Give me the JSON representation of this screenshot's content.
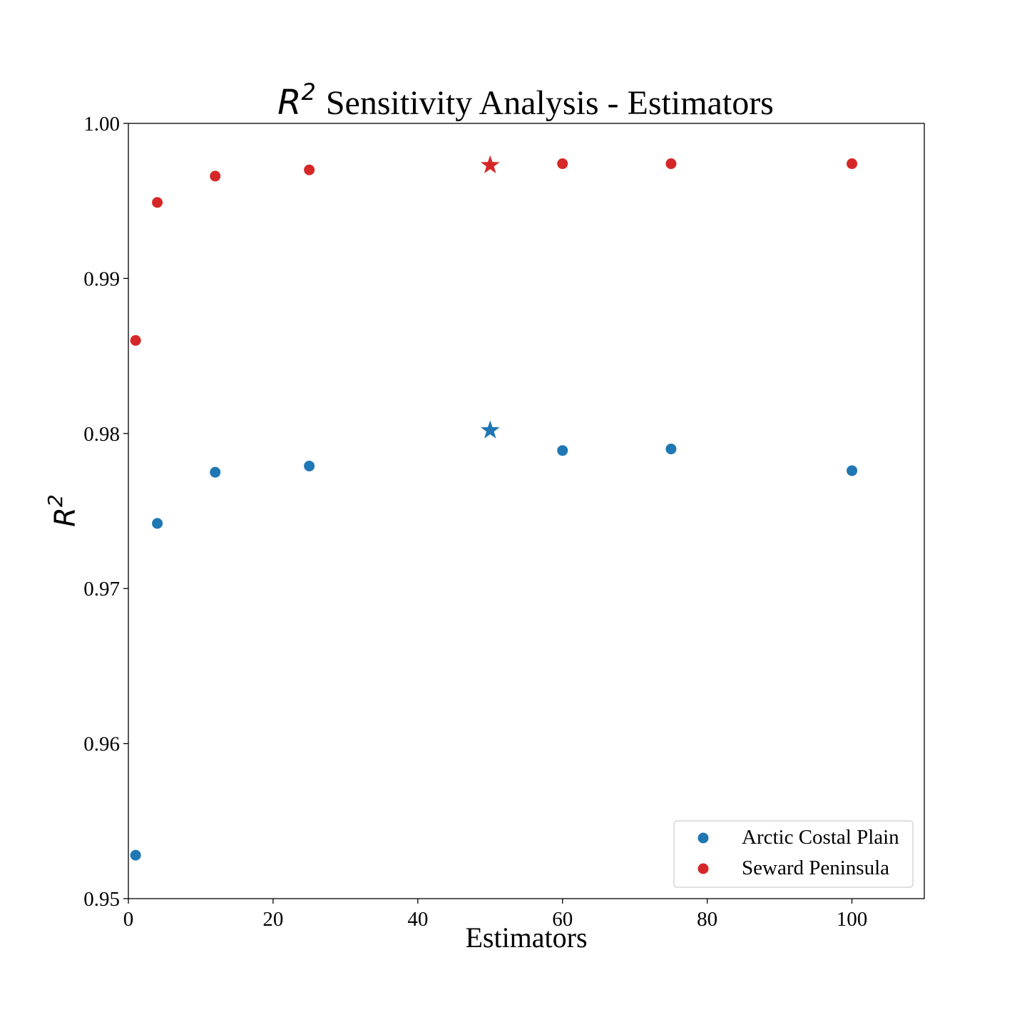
{
  "chart_data": {
    "type": "scatter",
    "title": {
      "math": "R",
      "superscript": "2",
      "text": "Sensitivity Analysis - Estimators"
    },
    "xlabel": "Estimators",
    "ylabel": {
      "math": "R",
      "superscript": "2"
    },
    "xlim": [
      0,
      110
    ],
    "ylim": [
      0.95,
      1.0
    ],
    "x_ticks": [
      0,
      20,
      40,
      60,
      80,
      100
    ],
    "x_tick_labels": [
      "0",
      "20",
      "40",
      "60",
      "80",
      "100"
    ],
    "y_ticks": [
      0.95,
      0.96,
      0.97,
      0.98,
      0.99,
      1.0
    ],
    "y_tick_labels": [
      "0.95",
      "0.96",
      "0.97",
      "0.98",
      "0.99",
      "1.00"
    ],
    "grid": false,
    "legend_position": "lower-right",
    "series": [
      {
        "name": "Arctic Costal Plain",
        "color": "#1f77b4",
        "x": [
          1,
          4,
          12,
          25,
          60,
          75,
          100
        ],
        "y": [
          0.9528,
          0.9742,
          0.9775,
          0.9779,
          0.9789,
          0.979,
          0.9776
        ],
        "best": {
          "x": 50,
          "y": 0.9802
        }
      },
      {
        "name": "Seward Peninsula",
        "color": "#d62728",
        "x": [
          1,
          4,
          12,
          25,
          60,
          75,
          100
        ],
        "y": [
          0.986,
          0.9949,
          0.9966,
          0.997,
          0.9974,
          0.9974,
          0.9974
        ],
        "best": {
          "x": 50,
          "y": 0.9973
        }
      }
    ]
  }
}
